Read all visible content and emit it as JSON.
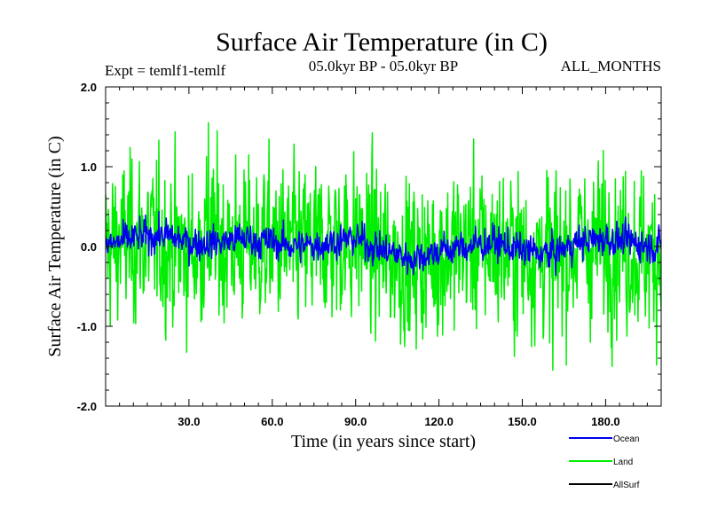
{
  "chart_data": {
    "type": "line",
    "title": "Surface Air Temperature (in C)",
    "expt_label": "Expt = temlf1-temlf",
    "period_label": "05.0kyr BP - 05.0kyr BP",
    "months_label": "ALL_MONTHS",
    "xlabel": "Time (in years since start)",
    "ylabel": "Surface Air Temperature (in C)",
    "xlim": [
      0,
      200
    ],
    "ylim": [
      -2.0,
      2.0
    ],
    "x_ticks": [
      30,
      60,
      90,
      120,
      150,
      180
    ],
    "x_tick_labels": [
      "30.0",
      "60.0",
      "90.0",
      "120.0",
      "150.0",
      "180.0"
    ],
    "y_ticks": [
      2.0,
      1.0,
      0.0,
      -1.0,
      -2.0
    ],
    "y_tick_labels": [
      "2.0",
      "1.0",
      "0.0",
      "-1.0",
      "-2.0"
    ],
    "series": [
      {
        "name": "Ocean",
        "color": "#0000ee",
        "note": "monthly anomaly series; envelope approx +/-0.3 C",
        "x": [
          0,
          10,
          20,
          30,
          40,
          50,
          60,
          70,
          80,
          90,
          100,
          110,
          120,
          130,
          140,
          150,
          160,
          170,
          180,
          190,
          200
        ],
        "values": [
          0.0,
          0.1,
          0.15,
          0.05,
          0.05,
          0.1,
          0.05,
          0.0,
          0.05,
          0.1,
          -0.05,
          -0.15,
          -0.05,
          0.0,
          0.05,
          -0.05,
          -0.1,
          0.05,
          0.1,
          0.05,
          0.0
        ]
      },
      {
        "name": "Land",
        "color": "#00ee00",
        "note": "monthly anomaly series; envelope approx +/-1.0 C, peak ~1.55 near year 37, minima ~-1.5",
        "x": [
          0,
          10,
          20,
          30,
          40,
          50,
          60,
          70,
          80,
          90,
          100,
          110,
          120,
          130,
          140,
          150,
          160,
          170,
          180,
          190,
          200
        ],
        "values": [
          0.0,
          0.1,
          0.05,
          -0.05,
          0.1,
          0.0,
          0.05,
          -0.05,
          0.05,
          0.1,
          -0.1,
          -0.2,
          -0.1,
          0.0,
          0.0,
          -0.1,
          -0.1,
          0.0,
          0.05,
          -0.05,
          -0.1
        ],
        "peak": {
          "x": 37,
          "y": 1.55
        },
        "min": {
          "x": 161,
          "y": -1.55
        }
      },
      {
        "name": "AllSurf",
        "color": "#000000",
        "values": []
      }
    ],
    "legend_position": "bottom-right"
  }
}
